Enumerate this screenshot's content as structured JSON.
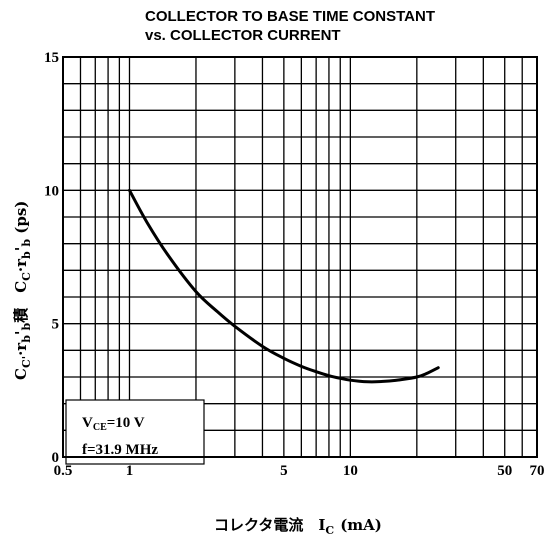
{
  "chart_data": {
    "type": "line",
    "title_line1": "COLLECTOR TO BASE TIME CONSTANT",
    "title_line2": "vs. COLLECTOR CURRENT",
    "xlabel": "コレクタ電流　I",
    "xlabel_sub": "C",
    "xlabel_unit": "(mA)",
    "ylabel": "C",
    "ylabel_parts": [
      {
        "t": "C",
        "sub": false
      },
      {
        "t": "C'",
        "sub": true
      },
      {
        "t": "·r",
        "sub": false
      },
      {
        "t": "b",
        "sub": true
      },
      {
        "t": "'",
        "sub": false
      },
      {
        "t": "b",
        "sub": true
      },
      {
        "t": "積　C",
        "sub": false
      },
      {
        "t": "C",
        "sub": true
      },
      {
        "t": "·r",
        "sub": false
      },
      {
        "t": "b",
        "sub": true
      },
      {
        "t": "'",
        "sub": false
      },
      {
        "t": "b",
        "sub": true
      },
      {
        "t": " (ps)",
        "sub": false
      }
    ],
    "x_scale": "log",
    "xlim": [
      0.5,
      70
    ],
    "ylim": [
      0,
      15
    ],
    "x_ticks": [
      {
        "v": 0.5,
        "label": "0.5"
      },
      {
        "v": 1,
        "label": "1"
      },
      {
        "v": 5,
        "label": "5"
      },
      {
        "v": 10,
        "label": "10"
      },
      {
        "v": 50,
        "label": "50"
      },
      {
        "v": 70,
        "label": "70"
      }
    ],
    "y_ticks": [
      {
        "v": 0,
        "label": "0"
      },
      {
        "v": 5,
        "label": "5"
      },
      {
        "v": 10,
        "label": "10"
      },
      {
        "v": 15,
        "label": "15"
      }
    ],
    "x_grid": [
      0.6,
      0.7,
      0.8,
      0.9,
      1,
      2,
      3,
      4,
      5,
      6,
      7,
      8,
      9,
      10,
      20,
      30,
      40,
      50,
      60,
      70
    ],
    "y_grid_step": 1,
    "grid": true,
    "series": [
      {
        "x": [
          1.0,
          1.2,
          1.5,
          2.0,
          2.5,
          3.0,
          4.0,
          5.0,
          6.0,
          7.0,
          8.0,
          9.0,
          10.0,
          11.0,
          12.0,
          13.0,
          15.0,
          17.0,
          20.0,
          22.0,
          25.0
        ],
        "y": [
          10.0,
          8.8,
          7.55,
          6.2,
          5.45,
          4.9,
          4.15,
          3.7,
          3.4,
          3.2,
          3.05,
          2.95,
          2.88,
          2.84,
          2.82,
          2.82,
          2.85,
          2.9,
          3.0,
          3.12,
          3.35
        ]
      }
    ],
    "annotation": {
      "line1_main": "V",
      "line1_sub": "CE",
      "line1_rest": "=10  V",
      "line2": "f=31.9  MHz"
    }
  },
  "colors": {
    "ink": "#000000",
    "paper": "#ffffff"
  }
}
